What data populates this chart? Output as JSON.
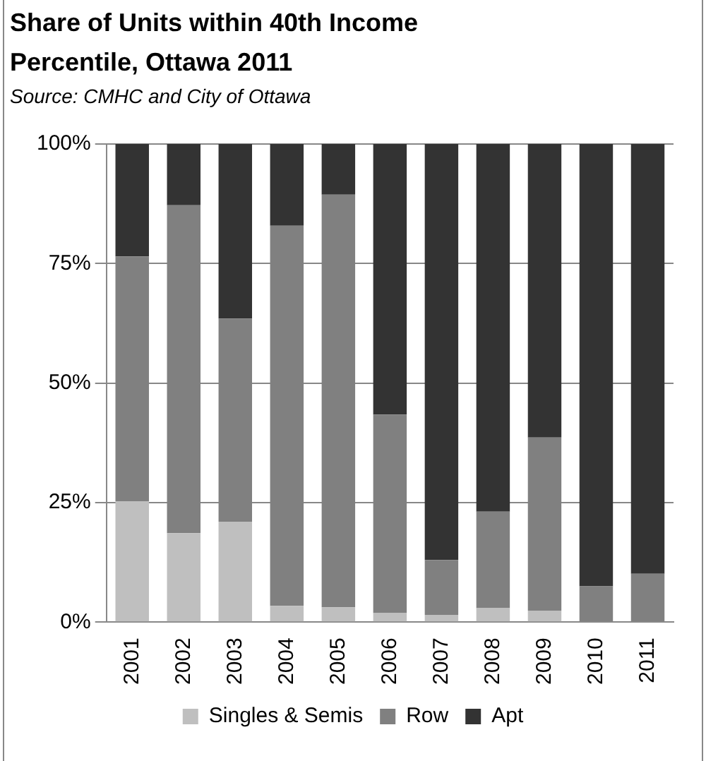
{
  "chart_data": {
    "type": "bar",
    "title": "Share of Units within 40th Income Percentile, Ottawa 2011",
    "subtitle": "Source: CMHC  and City of Ottawa",
    "categories": [
      "2001",
      "2002",
      "2003",
      "2004",
      "2005",
      "2006",
      "2007",
      "2008",
      "2009",
      "2010",
      "2011"
    ],
    "stacked": true,
    "series": [
      {
        "name": "Singles & Semis",
        "color": "#bfbfbf",
        "values": [
          25.3,
          18.6,
          21.0,
          3.4,
          3.1,
          1.9,
          1.5,
          2.9,
          2.4,
          0,
          0
        ]
      },
      {
        "name": "Row",
        "color": "#808080",
        "values": [
          51.2,
          68.6,
          42.5,
          79.5,
          86.3,
          41.5,
          11.5,
          20.2,
          36.2,
          7.5,
          10.1
        ]
      },
      {
        "name": "Apt",
        "color": "#333333",
        "values": [
          23.5,
          12.8,
          36.5,
          17.1,
          10.6,
          56.6,
          87.0,
          76.9,
          61.4,
          92.5,
          89.9
        ]
      }
    ],
    "ylim": [
      0,
      100
    ],
    "yticks": [
      {
        "value": 0,
        "label": "0%"
      },
      {
        "value": 25,
        "label": "25%"
      },
      {
        "value": 50,
        "label": "50%"
      },
      {
        "value": 75,
        "label": "75%"
      },
      {
        "value": 100,
        "label": "100%"
      }
    ],
    "grid": "y",
    "legend": "bottom"
  }
}
